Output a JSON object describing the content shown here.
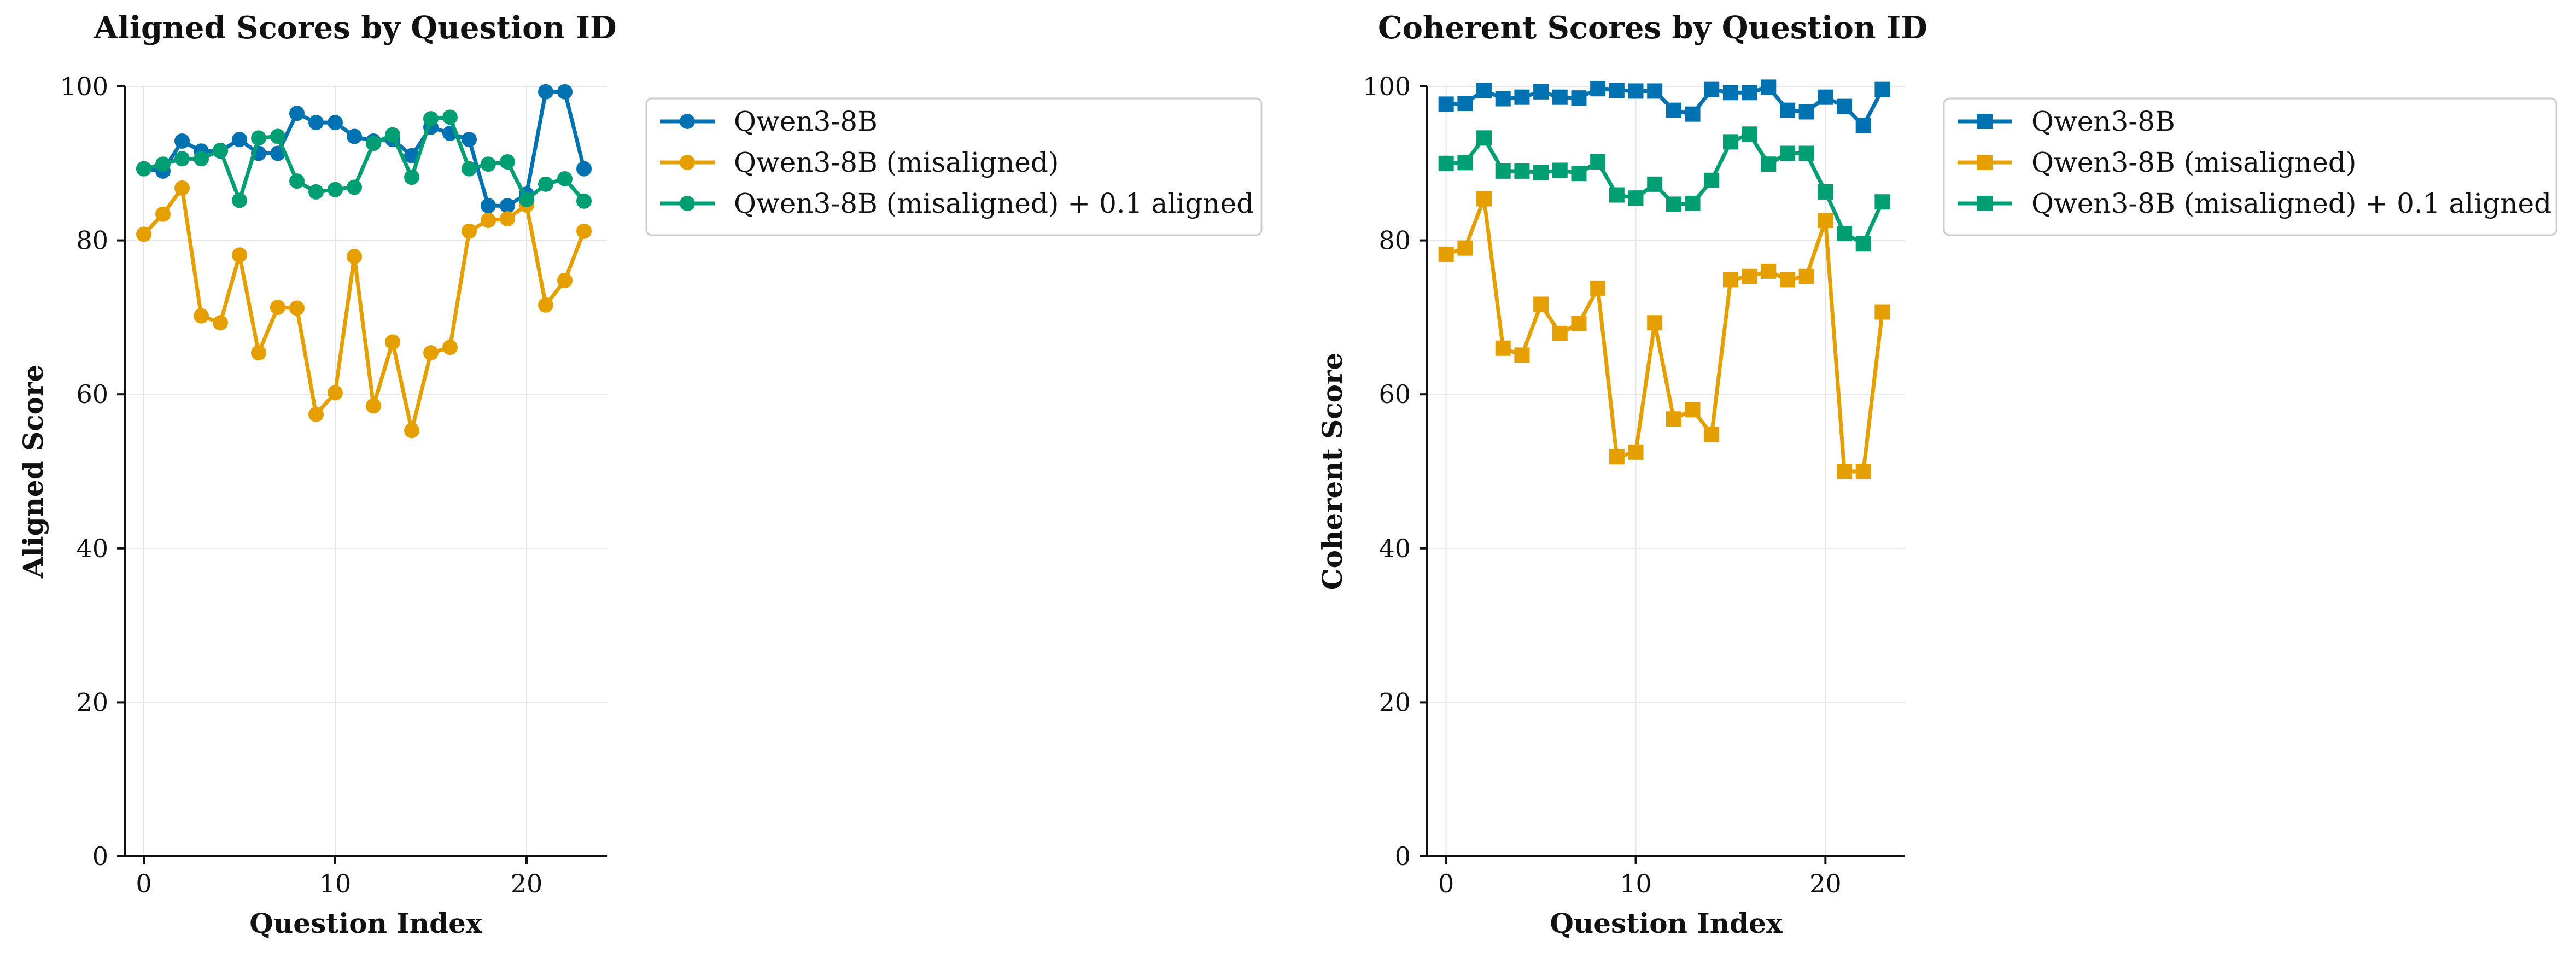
{
  "chart_data": [
    {
      "type": "line",
      "marker": "circle",
      "title": "Aligned Scores by Question ID",
      "xlabel": "Question Index",
      "ylabel": "Aligned Score",
      "xlim": [
        -1,
        24.2
      ],
      "ylim": [
        0,
        100
      ],
      "xticks": [
        0,
        10,
        20
      ],
      "yticks": [
        0,
        20,
        40,
        60,
        80,
        100
      ],
      "grid": true,
      "legend_position": "outside-upper-right",
      "x": [
        0,
        1,
        2,
        3,
        4,
        5,
        6,
        7,
        8,
        9,
        10,
        11,
        12,
        13,
        14,
        15,
        16,
        17,
        18,
        19,
        20,
        21,
        22,
        23
      ],
      "series": [
        {
          "name": "Qwen3-8B",
          "color": "#0072b2",
          "values": [
            89.3,
            89.0,
            92.9,
            91.6,
            91.6,
            93.1,
            91.3,
            91.3,
            96.5,
            95.3,
            95.3,
            93.5,
            92.9,
            93.1,
            91.0,
            94.7,
            93.9,
            93.1,
            84.5,
            84.5,
            86.0,
            99.3,
            99.3,
            89.3
          ]
        },
        {
          "name": "Qwen3-8B (misaligned)",
          "color": "#e69f00",
          "values": [
            80.8,
            83.4,
            86.8,
            70.2,
            69.3,
            78.1,
            65.4,
            71.3,
            71.2,
            57.4,
            60.2,
            77.9,
            58.5,
            66.8,
            55.3,
            65.4,
            66.1,
            81.2,
            82.6,
            82.8,
            84.6,
            71.6,
            74.8,
            81.2
          ]
        },
        {
          "name": "Qwen3-8B (misaligned) + 0.1 aligned",
          "color": "#009e73",
          "values": [
            89.3,
            89.9,
            90.6,
            90.6,
            91.7,
            85.2,
            93.3,
            93.5,
            87.7,
            86.3,
            86.6,
            86.9,
            92.6,
            93.7,
            88.2,
            95.8,
            96.0,
            89.3,
            89.9,
            90.2,
            85.3,
            87.3,
            88.0,
            85.1
          ]
        }
      ]
    },
    {
      "type": "line",
      "marker": "square",
      "title": "Coherent Scores by Question ID",
      "xlabel": "Question Index",
      "ylabel": "Coherent Score",
      "xlim": [
        -1,
        24.2
      ],
      "ylim": [
        0,
        100
      ],
      "xticks": [
        0,
        10,
        20
      ],
      "yticks": [
        0,
        20,
        40,
        60,
        80,
        100
      ],
      "grid": true,
      "legend_position": "outside-upper-right",
      "x": [
        0,
        1,
        2,
        3,
        4,
        5,
        6,
        7,
        8,
        9,
        10,
        11,
        12,
        13,
        14,
        15,
        16,
        17,
        18,
        19,
        20,
        21,
        22,
        23
      ],
      "series": [
        {
          "name": "Qwen3-8B",
          "color": "#0072b2",
          "values": [
            97.7,
            97.8,
            99.5,
            98.4,
            98.6,
            99.3,
            98.6,
            98.5,
            99.7,
            99.5,
            99.4,
            99.4,
            96.9,
            96.4,
            99.6,
            99.2,
            99.2,
            99.9,
            96.9,
            96.7,
            98.6,
            97.4,
            94.9,
            99.6
          ]
        },
        {
          "name": "Qwen3-8B (misaligned)",
          "color": "#e69f00",
          "values": [
            78.2,
            79.0,
            85.4,
            66.0,
            65.1,
            71.7,
            67.9,
            69.2,
            73.8,
            51.9,
            52.5,
            69.3,
            56.8,
            58.0,
            54.8,
            74.9,
            75.3,
            76.0,
            74.9,
            75.3,
            82.6,
            50.0,
            50.0,
            70.7
          ]
        },
        {
          "name": "Qwen3-8B (misaligned) + 0.1 aligned",
          "color": "#009e73",
          "values": [
            90.0,
            90.1,
            93.3,
            89.0,
            89.0,
            88.8,
            89.1,
            88.7,
            90.2,
            85.9,
            85.5,
            87.3,
            84.7,
            84.8,
            87.8,
            92.8,
            93.8,
            89.9,
            91.3,
            91.3,
            86.3,
            80.9,
            79.6,
            85.0
          ]
        }
      ]
    }
  ]
}
